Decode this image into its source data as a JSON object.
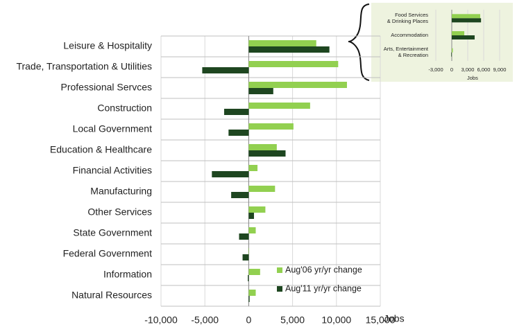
{
  "chart_data": [
    {
      "type": "bar",
      "orientation": "horizontal",
      "categories": [
        "Leisure & Hospitality",
        "Trade, Transportation & Utilities",
        "Professional Servces",
        "Construction",
        "Local Government",
        "Education & Healthcare",
        "Financial Activities",
        "Manufacturing",
        "Other Services",
        "State Government",
        "Federal Government",
        "Information",
        "Natural Resources"
      ],
      "series": [
        {
          "name": "Aug'06 yr/yr change",
          "color": "#92d050",
          "values": [
            7700,
            10200,
            11200,
            7000,
            5100,
            3200,
            1000,
            3000,
            1900,
            800,
            0,
            1300,
            800
          ]
        },
        {
          "name": "Aug'11 yr/yr change",
          "color": "#1e4620",
          "values": [
            9200,
            -5300,
            2800,
            -2800,
            -2300,
            4200,
            -4200,
            -2000,
            600,
            -1100,
            -700,
            -100,
            100
          ]
        }
      ],
      "xlim": [
        -10000,
        15000
      ],
      "xticks": [
        {
          "value": -10000,
          "label": "-10,000"
        },
        {
          "value": -5000,
          "label": "-5,000"
        },
        0,
        {
          "value": 5000,
          "label": "5,000"
        },
        {
          "value": 10000,
          "label": "10,000"
        },
        {
          "value": 15000,
          "label": "15,000"
        }
      ],
      "x_label": "Jobs",
      "grid": true,
      "legend": "lower right"
    },
    {
      "type": "bar",
      "orientation": "horizontal",
      "categories": [
        [
          "Food Services",
          "& Drinking Places"
        ],
        [
          "Accommodation"
        ],
        [
          "Arts, Entertainment",
          "& Recreation"
        ]
      ],
      "series": [
        {
          "color": "#92d050",
          "values": [
            5350,
            2350,
            200
          ]
        },
        {
          "color": "#1e4620",
          "values": [
            5500,
            4300,
            -100
          ]
        }
      ],
      "xlim": [
        -3000,
        9000
      ],
      "xticks": [
        {
          "value": -3000,
          "label": "-3,000"
        },
        0,
        {
          "value": 3000,
          "label": "3,000"
        },
        {
          "value": 6000,
          "label": "6,000"
        },
        {
          "value": 9000,
          "label": "9,000"
        }
      ],
      "x_label": "Jobs",
      "grid": true
    }
  ]
}
